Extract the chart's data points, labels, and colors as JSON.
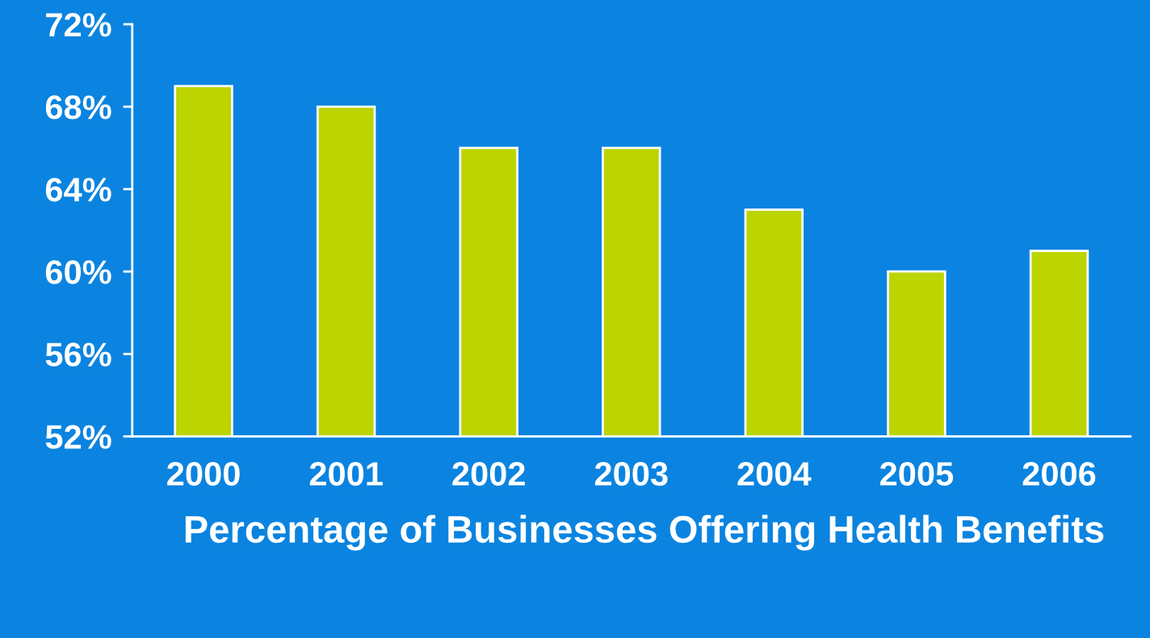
{
  "chart_data": {
    "type": "bar",
    "title": "Percentage of Businesses Offering Health Benefits",
    "categories": [
      "2000",
      "2001",
      "2002",
      "2003",
      "2004",
      "2005",
      "2006"
    ],
    "values": [
      69,
      68,
      66,
      66,
      63,
      60,
      61
    ],
    "color": "#bcd400",
    "ylim": [
      52,
      72
    ],
    "yticks": [
      {
        "value": 52,
        "label": "52%"
      },
      {
        "value": 56,
        "label": "56%"
      },
      {
        "value": 60,
        "label": "60%"
      },
      {
        "value": 64,
        "label": "64%"
      },
      {
        "value": 68,
        "label": "68%"
      },
      {
        "value": 72,
        "label": "72%"
      }
    ],
    "grid": false,
    "legend": false
  }
}
